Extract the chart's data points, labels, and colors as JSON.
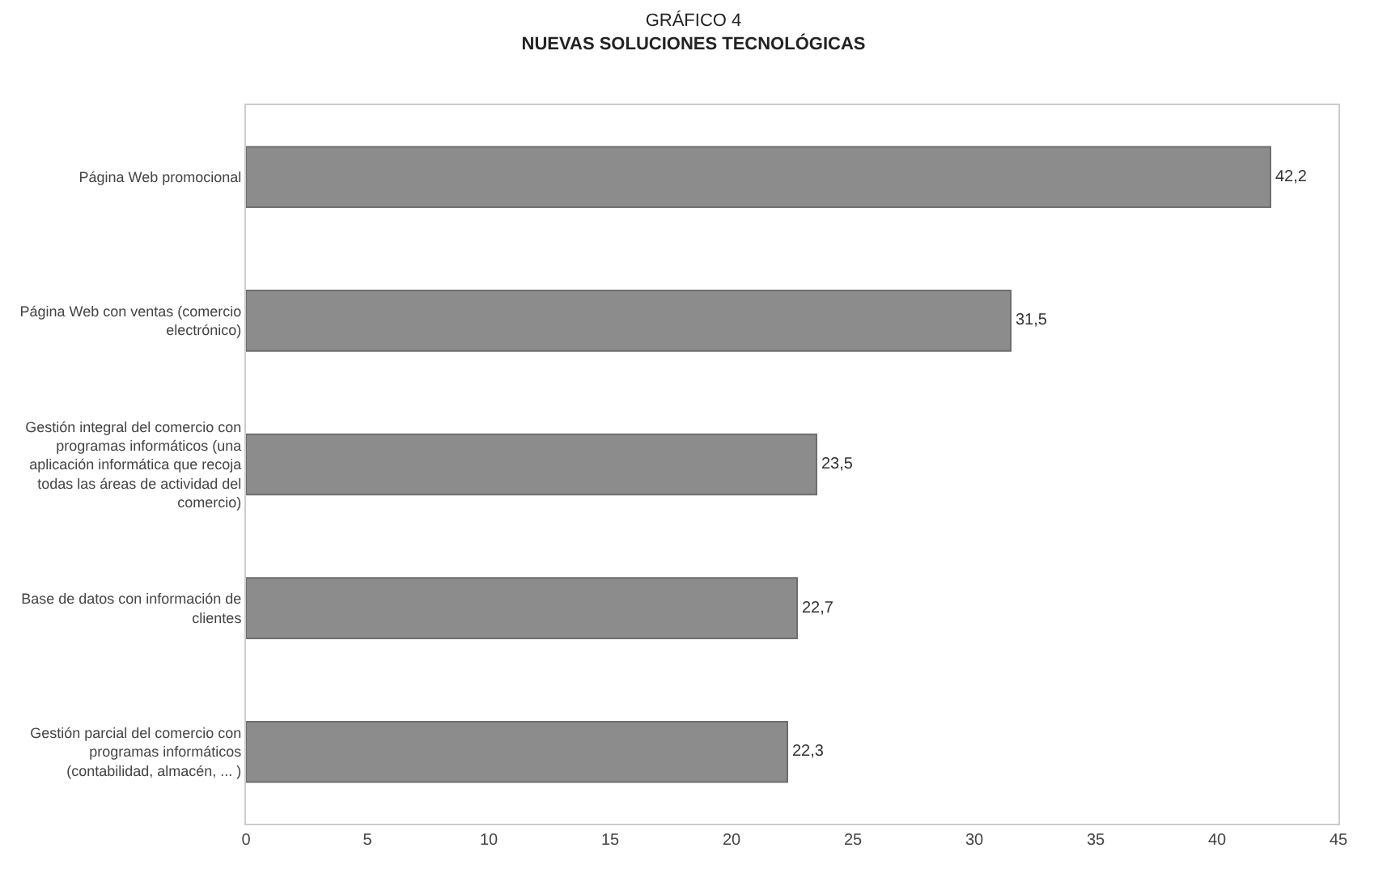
{
  "chart_data": {
    "type": "bar",
    "orientation": "horizontal",
    "title": "GRÁFICO 4",
    "subtitle": "NUEVAS SOLUCIONES TECNOLÓGICAS",
    "categories": [
      "Página Web promocional",
      "Página Web con ventas (comercio electrónico)",
      "Gestión integral del comercio con programas informáticos (una aplicación informática que recoja todas las áreas de actividad del comercio)",
      "Base de datos con información de clientes",
      "Gestión parcial del comercio con programas informáticos (contabilidad, almacén, ... )"
    ],
    "values": [
      42.2,
      31.5,
      23.5,
      22.7,
      22.3
    ],
    "value_labels": [
      "42,2",
      "31,5",
      "23,5",
      "22,7",
      "22,3"
    ],
    "color": "#8c8c8c",
    "xlim": [
      0,
      45
    ],
    "xticks": [
      0,
      5,
      10,
      15,
      20,
      25,
      30,
      35,
      40,
      45
    ],
    "grid": false,
    "legend": false
  }
}
